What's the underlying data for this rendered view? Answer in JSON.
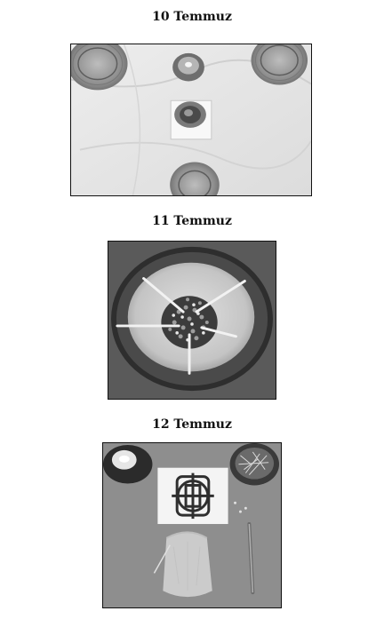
{
  "captions": {
    "first": "10 Temmuz",
    "second": "11 Temmuz",
    "third": "12 Temmuz"
  },
  "photos": {
    "first": {
      "scene": "candles-on-white-cloth"
    },
    "second": {
      "scene": "bowl-with-seeds-and-sticks"
    },
    "third": {
      "scene": "candle-celtic-knot-pouch-and-pins"
    }
  },
  "colors": {
    "frame": "#111111",
    "cloth": "#e6e6e6",
    "bowl_rim": "#3a3a3a",
    "bowl_inner": "#cfcfcf",
    "table": "#8c8c8c"
  }
}
